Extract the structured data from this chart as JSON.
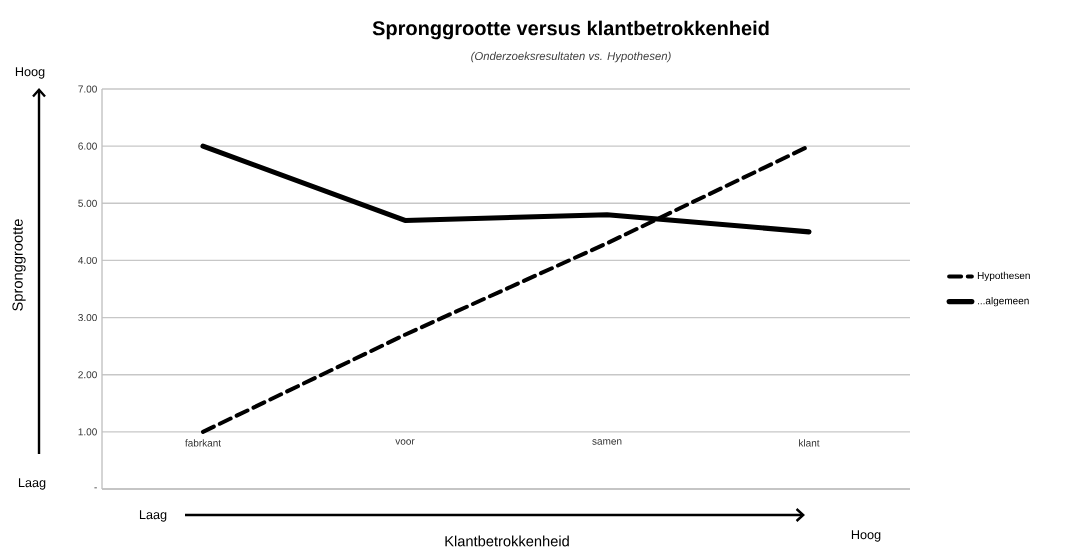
{
  "chart_data": {
    "type": "line",
    "title": "Spronggrootte versus klantbetrokkenheid",
    "subtitle": "(Onderzoeksresultaten vs. Hypothesen)",
    "xlabel": "Klantbetrokkenheid",
    "ylabel": "Spronggrootte",
    "annotations": [
      "Hoog",
      "Laag",
      "Laag",
      "Hoog"
    ],
    "categories": [
      "fabrkant",
      "voor",
      "samen",
      "klant"
    ],
    "series": [
      {
        "name": "Hypothesen",
        "color": "#000000",
        "line_style": "dashed",
        "values": [
          1.0,
          2.7,
          4.3,
          6.0
        ]
      },
      {
        "name": "...algemeen",
        "color": "#000000",
        "line_style": "solid",
        "values": [
          6.0,
          4.7,
          4.8,
          4.5
        ]
      }
    ],
    "ylim": [
      0,
      7
    ],
    "yticks": [
      {
        "value": 0,
        "label": "-"
      },
      {
        "value": 1,
        "label": "1.00"
      },
      {
        "value": 2,
        "label": "2.00"
      },
      {
        "value": 3,
        "label": "3.00"
      },
      {
        "value": 4,
        "label": "4.00"
      },
      {
        "value": 5,
        "label": "5.00"
      },
      {
        "value": 6,
        "label": "6.00"
      },
      {
        "value": 7,
        "label": "7.00"
      }
    ],
    "grid": "y",
    "legend": "right"
  }
}
